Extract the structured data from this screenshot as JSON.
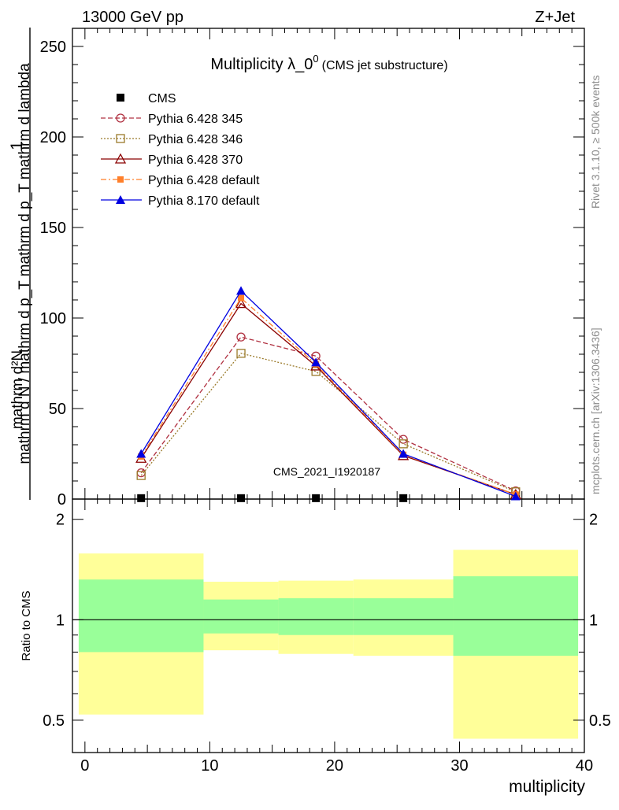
{
  "header": {
    "left": "13000 GeV pp",
    "right": "Z+Jet"
  },
  "side": {
    "rivet": "Rivet 3.1.10, ≥ 500k events",
    "mcplots": "mcplots.cern.ch [arXiv:1306.3436]"
  },
  "watermark": "CMS_2021_I1920187",
  "chart_data": [
    {
      "type": "line",
      "title": "Multiplicity λ_0",
      "title_sup": "0",
      "subtitle": "(CMS jet substructure)",
      "ylabel_lines": [
        "1",
        "mathrm d N / mathrm d p_T mathrm d p_T mathrm d lambda",
        "mathrm d²N"
      ],
      "xlim": [
        -1,
        40
      ],
      "ylim": [
        0,
        260
      ],
      "yticks": [
        0,
        50,
        100,
        150,
        200,
        250
      ],
      "legend_position": "top-left",
      "series": [
        {
          "name": "CMS",
          "color": "#000000",
          "marker": "square-filled",
          "dash": "none",
          "x": [
            4.5,
            12.5,
            18.5,
            25.5
          ],
          "y": [
            0.5,
            0.5,
            0.5,
            0.5
          ]
        },
        {
          "name": "Pythia 6.428 345",
          "color": "#b03040",
          "marker": "circle-open",
          "dash": "6,3",
          "x": [
            4.5,
            12.5,
            18.5,
            25.5,
            34.5
          ],
          "y": [
            14.5,
            89.5,
            79.0,
            33.0,
            4.5
          ]
        },
        {
          "name": "Pythia 6.428 346",
          "color": "#9a7a2a",
          "marker": "square-open",
          "dash": "2,2",
          "x": [
            4.5,
            12.5,
            18.5,
            25.5,
            34.5
          ],
          "y": [
            13.0,
            80.5,
            70.5,
            30.5,
            4.0
          ]
        },
        {
          "name": "Pythia 6.428 370",
          "color": "#8b0000",
          "marker": "triangle-open",
          "dash": "none",
          "x": [
            4.5,
            12.5,
            18.5,
            25.5,
            34.5
          ],
          "y": [
            22.5,
            108.0,
            73.5,
            24.0,
            2.5
          ]
        },
        {
          "name": "Pythia 6.428 default",
          "color": "#ff7f2a",
          "marker": "square-filled-small",
          "dash": "7,3,2,3",
          "x": [
            4.5,
            12.5,
            18.5,
            25.5,
            34.5
          ],
          "y": [
            23.5,
            111.0,
            74.5,
            24.5,
            2.5
          ]
        },
        {
          "name": "Pythia 8.170 default",
          "color": "#0000e0",
          "marker": "triangle-filled",
          "dash": "none",
          "x": [
            4.5,
            12.5,
            18.5,
            25.5,
            34.5
          ],
          "y": [
            25.0,
            115.0,
            75.5,
            25.0,
            1.5
          ]
        }
      ]
    },
    {
      "type": "area",
      "ylabel": "Ratio to CMS",
      "xlabel": "multiplicity",
      "xlim": [
        -1,
        40
      ],
      "ylim": [
        0.4,
        2.3
      ],
      "yscale": "log",
      "yticks": [
        0.5,
        1,
        2
      ],
      "xticks": [
        0,
        10,
        20,
        30,
        40
      ],
      "reference_line": 1,
      "bands": [
        {
          "x0": -0.5,
          "x1": 9.5,
          "yellow": [
            0.52,
            1.58
          ],
          "green": [
            0.8,
            1.32
          ]
        },
        {
          "x0": 9.5,
          "x1": 15.5,
          "yellow": [
            0.81,
            1.3
          ],
          "green": [
            0.91,
            1.15
          ]
        },
        {
          "x0": 15.5,
          "x1": 21.5,
          "yellow": [
            0.79,
            1.31
          ],
          "green": [
            0.9,
            1.16
          ]
        },
        {
          "x0": 21.5,
          "x1": 29.5,
          "yellow": [
            0.78,
            1.32
          ],
          "green": [
            0.9,
            1.16
          ]
        },
        {
          "x0": 29.5,
          "x1": 39.5,
          "yellow": [
            0.44,
            1.62
          ],
          "green": [
            0.78,
            1.35
          ]
        }
      ]
    }
  ]
}
